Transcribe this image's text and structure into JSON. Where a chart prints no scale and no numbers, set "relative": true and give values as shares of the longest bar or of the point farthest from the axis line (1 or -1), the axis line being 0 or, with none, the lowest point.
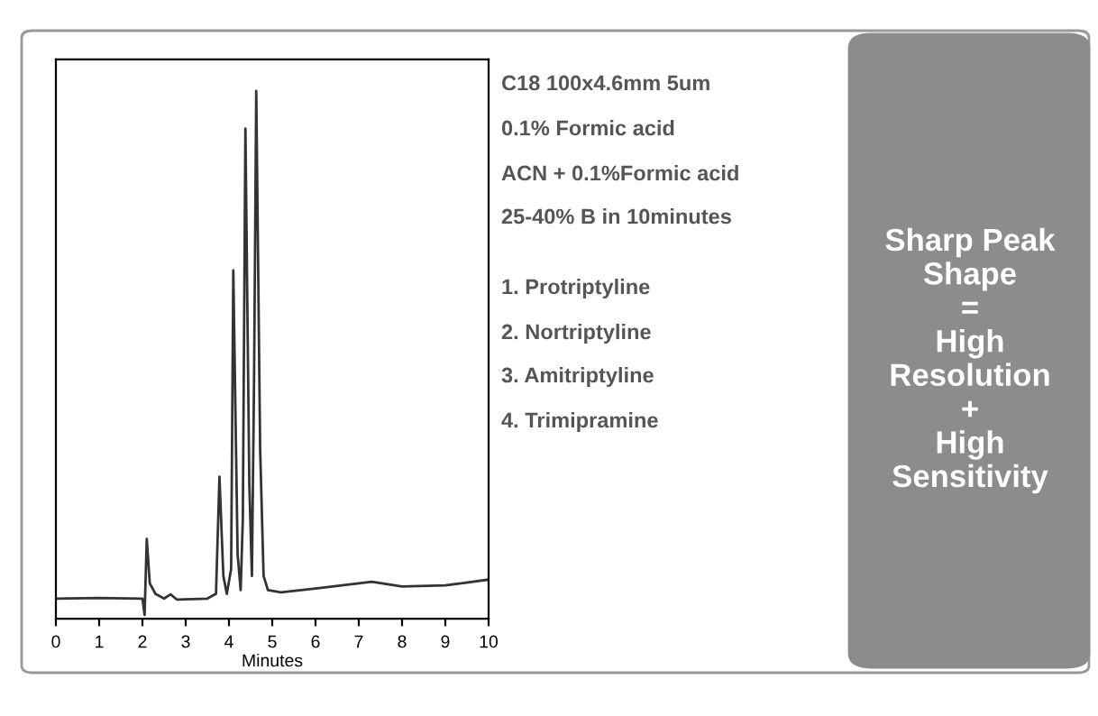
{
  "chart_data": {
    "type": "line",
    "relative": true,
    "xlabel": "Minutes",
    "xlim": [
      0,
      10
    ],
    "xticks": [
      0,
      1,
      2,
      3,
      4,
      5,
      6,
      7,
      8,
      9,
      10
    ],
    "line_style": "solid",
    "series": [
      {
        "color": "#333333",
        "x": [
          0,
          1,
          2,
          2.05,
          2.1,
          2.17,
          2.3,
          2.5,
          2.65,
          2.8,
          3.5,
          3.7,
          3.78,
          3.87,
          3.95,
          4.05,
          4.1,
          4.2,
          4.27,
          4.32,
          4.38,
          4.47,
          4.53,
          4.58,
          4.63,
          4.72,
          4.8,
          4.9,
          5.2,
          6,
          7,
          7.3,
          8,
          9,
          10
        ],
        "values": [
          0.038,
          0.039,
          0.038,
          0.007,
          0.151,
          0.067,
          0.047,
          0.038,
          0.046,
          0.036,
          0.038,
          0.047,
          0.269,
          0.081,
          0.047,
          0.094,
          0.66,
          0.121,
          0.054,
          0.188,
          0.929,
          0.256,
          0.081,
          0.458,
          1.0,
          0.323,
          0.081,
          0.054,
          0.05,
          0.057,
          0.067,
          0.07,
          0.061,
          0.063,
          0.074
        ]
      }
    ],
    "annotations": [
      "C18 100x4.6mm 5um",
      "0.1% Formic acid",
      "ACN + 0.1%Formic acid",
      "25-40% B in 10minutes",
      "1. Protriptyline",
      "2. Nortriptyline",
      "3. Amitriptyline",
      "4. Trimipramine",
      "Sharp Peak\nShape\n=\nHigh\nResolution\n+\nHigh\nSensitivity"
    ]
  }
}
